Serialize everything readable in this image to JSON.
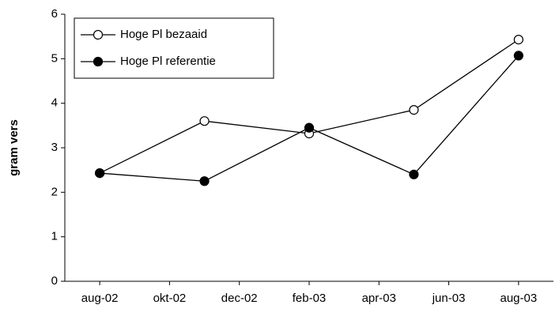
{
  "chart_data": {
    "type": "line",
    "y_label": "gram vers",
    "x": [
      "2002-08",
      "2002-11",
      "2003-02",
      "2003-05",
      "2003-08"
    ],
    "xlim": [
      "2002-07",
      "2003-09"
    ],
    "xticks": [
      {
        "value": "2002-08",
        "label": "aug-02"
      },
      {
        "value": "2002-10",
        "label": "okt-02"
      },
      {
        "value": "2002-12",
        "label": "dec-02"
      },
      {
        "value": "2003-02",
        "label": "feb-03"
      },
      {
        "value": "2003-04",
        "label": "apr-03"
      },
      {
        "value": "2003-06",
        "label": "jun-03"
      },
      {
        "value": "2003-08",
        "label": "aug-03"
      }
    ],
    "ylim": [
      0,
      6
    ],
    "yticks": [
      0,
      1,
      2,
      3,
      4,
      5,
      6
    ],
    "legend": "top-left",
    "series": [
      {
        "name": "Hoge Pl bezaaid",
        "color": "#ffffff",
        "values": [
          2.43,
          3.6,
          3.32,
          3.85,
          5.43
        ]
      },
      {
        "name": "Hoge Pl referentie",
        "color": "#000000",
        "values": [
          2.43,
          2.25,
          3.45,
          2.4,
          5.07
        ]
      }
    ]
  }
}
